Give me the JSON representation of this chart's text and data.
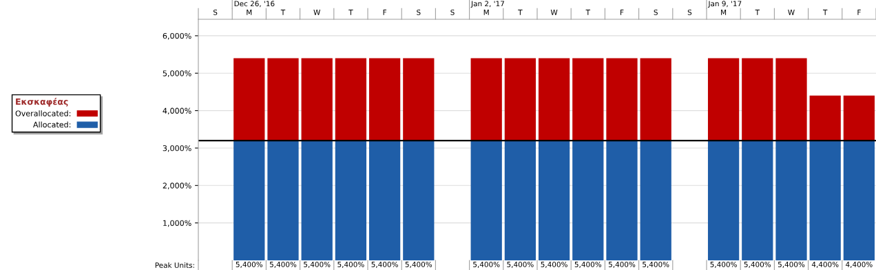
{
  "chart_data": {
    "type": "bar",
    "stacked": true,
    "categories": [
      "S",
      "M",
      "T",
      "W",
      "T",
      "F",
      "S",
      "S",
      "M",
      "T",
      "W",
      "T",
      "F",
      "S",
      "S",
      "M",
      "T",
      "W",
      "T",
      "F"
    ],
    "series": [
      {
        "name": "Allocated:",
        "color": "#1f5ea8",
        "values": [
          null,
          3200,
          3200,
          3200,
          3200,
          3200,
          3200,
          null,
          3200,
          3200,
          3200,
          3200,
          3200,
          3200,
          null,
          3200,
          3200,
          3200,
          3200,
          3200
        ]
      },
      {
        "name": "Overallocated:",
        "color": "#c00000",
        "values": [
          null,
          2200,
          2200,
          2200,
          2200,
          2200,
          2200,
          null,
          2200,
          2200,
          2200,
          2200,
          2200,
          2200,
          null,
          2200,
          2200,
          2200,
          1200,
          1200
        ]
      }
    ],
    "totals": [
      null,
      "5,400%",
      "5,400%",
      "5,400%",
      "5,400%",
      "5,400%",
      "5,400%",
      null,
      "5,400%",
      "5,400%",
      "5,400%",
      "5,400%",
      "5,400%",
      "5,400%",
      null,
      "5,400%",
      "5,400%",
      "5,400%",
      "4,400%",
      "4,400%"
    ],
    "ylim": [
      0,
      6440
    ],
    "yticks": [
      {
        "value": 1000,
        "label": "1,000%"
      },
      {
        "value": 2000,
        "label": "2,000%"
      },
      {
        "value": 3000,
        "label": "3,000%"
      },
      {
        "value": 4000,
        "label": "4,000%"
      },
      {
        "value": 5000,
        "label": "5,000%"
      },
      {
        "value": 6000,
        "label": "6,000%"
      }
    ],
    "ref_lines": [
      {
        "axis": "y",
        "value": 3200,
        "color": "#000000"
      }
    ],
    "legend_title": "Εκσκαφέας",
    "legend": "left",
    "grid": "y",
    "annotations": [
      "Dec 26, '16",
      "Jan 2, '17",
      "Jan 9, '17",
      "Peak Units:"
    ]
  }
}
